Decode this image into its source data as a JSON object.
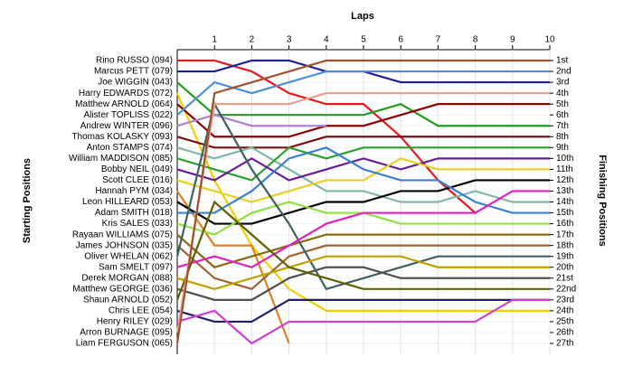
{
  "chart_data": {
    "type": "line",
    "title": "Laps",
    "y_label": "Starting Positions",
    "y2_label": "Finishing Positions",
    "x": [
      0,
      1,
      2,
      3,
      4,
      5,
      6,
      7,
      8,
      9,
      10
    ],
    "xlim": [
      0,
      10
    ],
    "xticks": [
      1,
      2,
      3,
      4,
      5,
      6,
      7,
      8,
      9,
      10
    ],
    "ylim": [
      1,
      27
    ],
    "y2ticks": [
      {
        "value": 1,
        "label": "1st"
      },
      {
        "value": 2,
        "label": "2nd"
      },
      {
        "value": 3,
        "label": "3rd"
      },
      {
        "value": 4,
        "label": "4th"
      },
      {
        "value": 5,
        "label": "5th"
      },
      {
        "value": 6,
        "label": "6th"
      },
      {
        "value": 7,
        "label": "7th"
      },
      {
        "value": 8,
        "label": "8th"
      },
      {
        "value": 9,
        "label": "9th"
      },
      {
        "value": 10,
        "label": "10th"
      },
      {
        "value": 11,
        "label": "11th"
      },
      {
        "value": 12,
        "label": "12th"
      },
      {
        "value": 13,
        "label": "13th"
      },
      {
        "value": 14,
        "label": "14th"
      },
      {
        "value": 15,
        "label": "15th"
      },
      {
        "value": 16,
        "label": "16th"
      },
      {
        "value": 17,
        "label": "17th"
      },
      {
        "value": 18,
        "label": "18th"
      },
      {
        "value": 19,
        "label": "19th"
      },
      {
        "value": 20,
        "label": "20th"
      },
      {
        "value": 21,
        "label": "21st"
      },
      {
        "value": 22,
        "label": "22nd"
      },
      {
        "value": 23,
        "label": "23rd"
      },
      {
        "value": 24,
        "label": "24th"
      },
      {
        "value": 25,
        "label": "25th"
      },
      {
        "value": 26,
        "label": "26th"
      },
      {
        "value": 27,
        "label": "27th"
      }
    ],
    "grid": true,
    "series": [
      {
        "name": "Rino RUSSO (094)",
        "color": "#e41a1c",
        "values": [
          1,
          1,
          2,
          4,
          5,
          5,
          8,
          12,
          15,
          null,
          null
        ]
      },
      {
        "name": "Marcus PETT (079)",
        "color": "#1f1f9a",
        "values": [
          2,
          2,
          1,
          1,
          2,
          2,
          3,
          3,
          3,
          3,
          3
        ]
      },
      {
        "name": "Joe WIGGIN (043)",
        "color": "#1e9e1e",
        "values": [
          3,
          6,
          6,
          6,
          6,
          6,
          5,
          7,
          7,
          7,
          7
        ]
      },
      {
        "name": "Harry EDWARDS (072)",
        "color": "#f0d000",
        "values": [
          4,
          12,
          18,
          22,
          24,
          24,
          24,
          24,
          24,
          24,
          24
        ]
      },
      {
        "name": "Matthew ARNOLD (064)",
        "color": "#8b0000",
        "values": [
          5,
          8,
          8,
          8,
          7,
          7,
          6,
          5,
          5,
          5,
          5
        ]
      },
      {
        "name": "Alister TOPLISS (022)",
        "color": "#4a90d9",
        "values": [
          6,
          3,
          4,
          3,
          2,
          2,
          2,
          2,
          2,
          2,
          2
        ]
      },
      {
        "name": "Andrew WINTER (096)",
        "color": "#b080d0",
        "values": [
          7,
          6,
          7,
          7,
          7,
          null,
          null,
          null,
          null,
          null,
          null
        ]
      },
      {
        "name": "Thomas KOLASKY (093)",
        "color": "#7a1010",
        "values": [
          8,
          9,
          9,
          9,
          8,
          8,
          8,
          8,
          8,
          8,
          8
        ]
      },
      {
        "name": "Anton STAMPS (074)",
        "color": "#7fb8a8",
        "values": [
          9,
          10,
          9,
          11,
          13,
          13,
          14,
          14,
          13,
          14,
          14
        ]
      },
      {
        "name": "William MADDISON (085)",
        "color": "#2ca02c",
        "values": [
          10,
          11,
          12,
          9,
          10,
          9,
          9,
          9,
          9,
          9,
          9
        ]
      },
      {
        "name": "Bobby NEIL (049)",
        "color": "#6a1b9a",
        "values": [
          11,
          12,
          10,
          12,
          11,
          10,
          11,
          10,
          10,
          10,
          10
        ]
      },
      {
        "name": "Scott CLEE (016)",
        "color": "#e8d020",
        "values": [
          12,
          13,
          14,
          13,
          12,
          12,
          10,
          11,
          11,
          11,
          11
        ]
      },
      {
        "name": "Hannah PYM (034)",
        "color": "#e08020",
        "values": [
          13,
          18,
          18,
          27,
          null,
          null,
          null,
          null,
          null,
          null,
          null
        ]
      },
      {
        "name": "Leon HILLEARD (053)",
        "color": "#000000",
        "values": [
          14,
          16,
          16,
          15,
          14,
          14,
          13,
          13,
          12,
          12,
          12
        ]
      },
      {
        "name": "Adam SMITH (018)",
        "color": "#3a80d0",
        "values": [
          15,
          15,
          13,
          10,
          9,
          11,
          12,
          12,
          14,
          15,
          15
        ]
      },
      {
        "name": "Kris SALES (033)",
        "color": "#90e040",
        "values": [
          16,
          17,
          15,
          14,
          15,
          15,
          16,
          16,
          16,
          16,
          16
        ]
      },
      {
        "name": "Rayaan WILLIAMS (075)",
        "color": "#8a6a10",
        "values": [
          17,
          20,
          19,
          18,
          17,
          17,
          17,
          17,
          17,
          17,
          17
        ]
      },
      {
        "name": "James JOHNSON (035)",
        "color": "#a06030",
        "values": [
          18,
          21,
          22,
          19,
          18,
          18,
          18,
          18,
          18,
          18,
          18
        ]
      },
      {
        "name": "Oliver WHELAN (062)",
        "color": "#406060",
        "values": [
          19,
          5,
          11,
          16,
          22,
          21,
          20,
          19,
          19,
          19,
          19
        ]
      },
      {
        "name": "Sam SMELT (097)",
        "color": "#e020c0",
        "values": [
          20,
          19,
          20,
          18,
          16,
          15,
          15,
          15,
          15,
          13,
          13
        ]
      },
      {
        "name": "Derek MORGAN (088)",
        "color": "#c0a000",
        "values": [
          21,
          22,
          21,
          20,
          19,
          19,
          19,
          20,
          20,
          20,
          20
        ]
      },
      {
        "name": "Matthew GEORGE (036)",
        "color": "#505050",
        "values": [
          22,
          23,
          23,
          21,
          20,
          20,
          21,
          21,
          21,
          21,
          21
        ]
      },
      {
        "name": "Shaun ARNOLD (052)",
        "color": "#606000",
        "values": [
          23,
          14,
          17,
          20,
          21,
          22,
          22,
          22,
          22,
          22,
          22
        ]
      },
      {
        "name": "Chris LEE (054)",
        "color": "#20206a",
        "values": [
          24,
          25,
          25,
          23,
          23,
          23,
          23,
          23,
          23,
          23,
          23
        ]
      },
      {
        "name": "Henry RILEY (029)",
        "color": "#d040d0",
        "values": [
          25,
          24,
          27,
          25,
          25,
          25,
          25,
          25,
          25,
          23,
          23
        ]
      },
      {
        "name": "Arron BURNAGE (095)",
        "color": "#e8a090",
        "values": [
          26,
          5,
          5,
          5,
          4,
          4,
          4,
          4,
          4,
          4,
          4
        ]
      },
      {
        "name": "Liam FERGUSON (065)",
        "color": "#a0522d",
        "values": [
          27,
          4,
          3,
          2,
          1,
          1,
          1,
          1,
          1,
          1,
          1
        ]
      }
    ]
  }
}
